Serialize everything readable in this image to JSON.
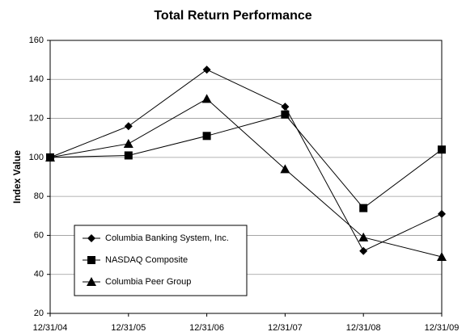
{
  "chart_data": {
    "type": "line",
    "title": "Total Return Performance",
    "y_label": "Index Value",
    "categories": [
      "12/31/04",
      "12/31/05",
      "12/31/06",
      "12/31/07",
      "12/31/08",
      "12/31/09"
    ],
    "series": [
      {
        "name": "Columbia Banking System, Inc.",
        "color": "#000000",
        "marker": "diamond",
        "values": [
          100,
          116,
          145,
          126,
          52,
          71
        ]
      },
      {
        "name": "NASDAQ Composite",
        "color": "#000000",
        "marker": "square",
        "values": [
          100,
          101,
          111,
          122,
          74,
          104
        ]
      },
      {
        "name": "Columbia Peer Group",
        "color": "#000000",
        "marker": "triangle",
        "values": [
          100,
          107,
          130,
          94,
          59,
          49
        ]
      }
    ],
    "ylim": [
      20,
      160
    ],
    "yticks": [
      20,
      40,
      60,
      80,
      100,
      120,
      140,
      160
    ],
    "grid": true,
    "legend": "lower left"
  }
}
